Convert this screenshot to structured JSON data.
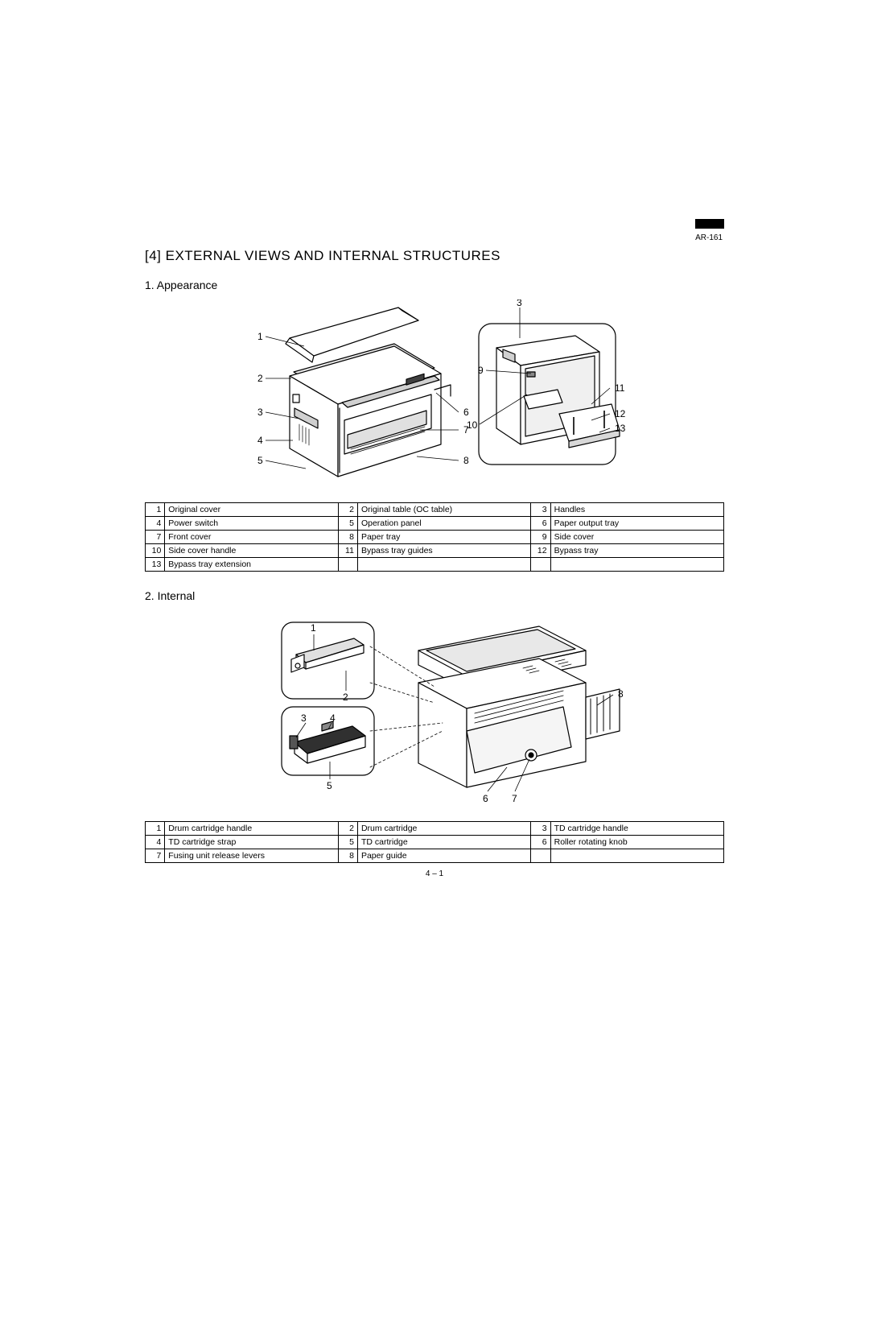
{
  "model_label": "AR-161",
  "chapter_title": "[4] EXTERNAL VIEWS AND INTERNAL STRUCTURES",
  "section1": {
    "title": "1. Appearance",
    "callouts_left": [
      "1",
      "2",
      "3",
      "4",
      "5",
      "6",
      "7",
      "8",
      "9",
      "10",
      "11",
      "12",
      "13",
      "3"
    ],
    "table_rows": [
      [
        {
          "n": "1",
          "t": "Original cover"
        },
        {
          "n": "2",
          "t": "Original table (OC table)"
        },
        {
          "n": "3",
          "t": "Handles"
        }
      ],
      [
        {
          "n": "4",
          "t": "Power switch"
        },
        {
          "n": "5",
          "t": "Operation panel"
        },
        {
          "n": "6",
          "t": "Paper output tray"
        }
      ],
      [
        {
          "n": "7",
          "t": "Front cover"
        },
        {
          "n": "8",
          "t": "Paper tray"
        },
        {
          "n": "9",
          "t": "Side cover"
        }
      ],
      [
        {
          "n": "10",
          "t": "Side cover handle"
        },
        {
          "n": "11",
          "t": "Bypass tray guides"
        },
        {
          "n": "12",
          "t": "Bypass tray"
        }
      ],
      [
        {
          "n": "13",
          "t": "Bypass tray extension"
        },
        {
          "n": "",
          "t": ""
        },
        {
          "n": "",
          "t": ""
        }
      ]
    ]
  },
  "section2": {
    "title": "2. Internal",
    "callouts": [
      "1",
      "2",
      "3",
      "4",
      "5",
      "6",
      "7",
      "8"
    ],
    "table_rows": [
      [
        {
          "n": "1",
          "t": "Drum cartridge handle"
        },
        {
          "n": "2",
          "t": "Drum cartridge"
        },
        {
          "n": "3",
          "t": "TD cartridge handle"
        }
      ],
      [
        {
          "n": "4",
          "t": "TD cartridge strap"
        },
        {
          "n": "5",
          "t": "TD cartridge"
        },
        {
          "n": "6",
          "t": "Roller rotating knob"
        }
      ],
      [
        {
          "n": "7",
          "t": "Fusing unit release levers"
        },
        {
          "n": "8",
          "t": "Paper guide"
        },
        {
          "n": "",
          "t": ""
        }
      ]
    ]
  },
  "page_number": "4 – 1",
  "figure": {
    "stroke": "#000000",
    "fill": "#ffffff",
    "shade": "#d8d8d8",
    "line_width_main": 1.2,
    "line_width_thin": 0.8,
    "callout_fontsize": 12
  }
}
